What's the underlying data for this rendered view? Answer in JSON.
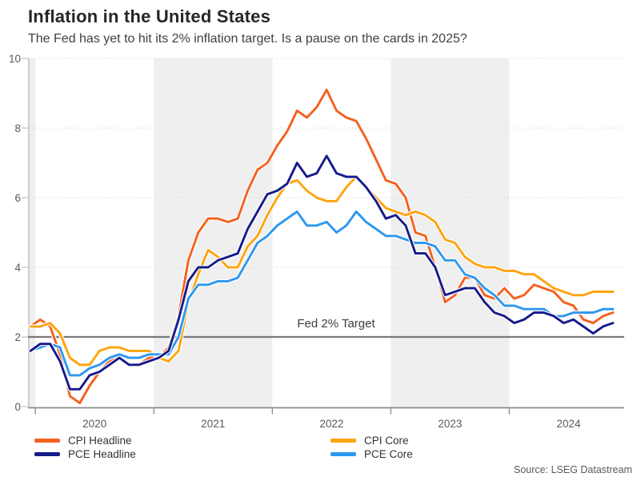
{
  "header": {
    "title": "Inflation in the United States",
    "subtitle": "The Fed has yet to hit its 2% inflation target. Is a pause on the cards in 2025?"
  },
  "source": "Source: LSEG Datastream",
  "colors": {
    "cpi_headline": "#F4601D",
    "cpi_core": "#FFA30F",
    "pce_headline": "#161A8B",
    "pce_core": "#2D97EE",
    "band": "#efefef",
    "grid": "#d9d9d9",
    "target_line": "#7a7a7a",
    "x_axis": "#8c8c8c",
    "y_axis": "#cccccc",
    "tick_label": "#595959",
    "annotation_text": "#3d3d3d"
  },
  "legend": [
    {
      "label": "CPI Headline",
      "color": "#F4601D",
      "column": 1
    },
    {
      "label": "PCE Headline",
      "color": "#161A8B",
      "column": 1
    },
    {
      "label": "CPI Core",
      "color": "#FFA30F",
      "column": 2
    },
    {
      "label": "PCE Core",
      "color": "#2D97EE",
      "column": 2
    }
  ],
  "chart_data": {
    "type": "line",
    "title": "Inflation in the United States",
    "start_month": "2019-12",
    "frequency": "monthly",
    "ylim": [
      0,
      10
    ],
    "y_ticks": [
      0,
      2,
      4,
      6,
      8,
      10
    ],
    "x_tick_years": [
      "2020",
      "2021",
      "2022",
      "2023",
      "2024"
    ],
    "shaded_years": [
      "2019",
      "2021",
      "2023"
    ],
    "grid": "dotted-horizontal",
    "legend_position": "bottom",
    "target_line": {
      "label": "Fed 2% Target",
      "value": 2
    },
    "series": [
      {
        "name": "CPI Headline",
        "slug": "cpi-headline",
        "color": "#F4601D",
        "values": [
          2.3,
          2.5,
          2.3,
          1.5,
          0.3,
          0.1,
          0.6,
          1.0,
          1.3,
          1.4,
          1.2,
          1.2,
          1.4,
          1.4,
          1.7,
          2.6,
          4.2,
          5.0,
          5.4,
          5.4,
          5.3,
          5.4,
          6.2,
          6.8,
          7.0,
          7.5,
          7.9,
          8.5,
          8.3,
          8.6,
          9.1,
          8.5,
          8.3,
          8.2,
          7.7,
          7.1,
          6.5,
          6.4,
          6.0,
          5.0,
          4.9,
          4.0,
          3.0,
          3.2,
          3.7,
          3.7,
          3.2,
          3.1,
          3.4,
          3.1,
          3.2,
          3.5,
          3.4,
          3.3,
          3.0,
          2.9,
          2.5,
          2.4,
          2.6,
          2.7
        ]
      },
      {
        "name": "CPI Core",
        "slug": "cpi-core",
        "color": "#FFA30F",
        "values": [
          2.3,
          2.3,
          2.4,
          2.1,
          1.4,
          1.2,
          1.2,
          1.6,
          1.7,
          1.7,
          1.6,
          1.6,
          1.6,
          1.4,
          1.3,
          1.6,
          3.0,
          3.8,
          4.5,
          4.3,
          4.0,
          4.0,
          4.6,
          4.9,
          5.5,
          6.0,
          6.4,
          6.5,
          6.2,
          6.0,
          5.9,
          5.9,
          6.3,
          6.6,
          6.3,
          6.0,
          5.7,
          5.6,
          5.5,
          5.6,
          5.5,
          5.3,
          4.8,
          4.7,
          4.3,
          4.1,
          4.0,
          4.0,
          3.9,
          3.9,
          3.8,
          3.8,
          3.6,
          3.4,
          3.3,
          3.2,
          3.2,
          3.3,
          3.3,
          3.3
        ]
      },
      {
        "name": "PCE Core",
        "slug": "pce-core",
        "color": "#2D97EE",
        "values": [
          1.6,
          1.7,
          1.8,
          1.7,
          0.9,
          0.9,
          1.1,
          1.2,
          1.4,
          1.5,
          1.4,
          1.4,
          1.5,
          1.5,
          1.5,
          2.0,
          3.1,
          3.5,
          3.5,
          3.6,
          3.6,
          3.7,
          4.2,
          4.7,
          4.9,
          5.2,
          5.4,
          5.6,
          5.2,
          5.2,
          5.3,
          5.0,
          5.2,
          5.6,
          5.3,
          5.1,
          4.9,
          4.9,
          4.8,
          4.7,
          4.7,
          4.6,
          4.2,
          4.2,
          3.8,
          3.7,
          3.4,
          3.2,
          2.9,
          2.9,
          2.8,
          2.8,
          2.8,
          2.6,
          2.6,
          2.7,
          2.7,
          2.7,
          2.8,
          2.8
        ]
      },
      {
        "name": "PCE Headline",
        "slug": "pce-headline",
        "color": "#161A8B",
        "values": [
          1.6,
          1.8,
          1.8,
          1.3,
          0.5,
          0.5,
          0.9,
          1.0,
          1.2,
          1.4,
          1.2,
          1.2,
          1.3,
          1.4,
          1.6,
          2.5,
          3.6,
          4.0,
          4.0,
          4.2,
          4.3,
          4.4,
          5.1,
          5.6,
          6.1,
          6.2,
          6.4,
          7.0,
          6.6,
          6.7,
          7.2,
          6.7,
          6.6,
          6.6,
          6.3,
          5.9,
          5.4,
          5.5,
          5.2,
          4.4,
          4.4,
          4.0,
          3.2,
          3.3,
          3.4,
          3.4,
          3.0,
          2.7,
          2.6,
          2.4,
          2.5,
          2.7,
          2.7,
          2.6,
          2.4,
          2.5,
          2.3,
          2.1,
          2.3,
          2.4
        ]
      }
    ]
  }
}
